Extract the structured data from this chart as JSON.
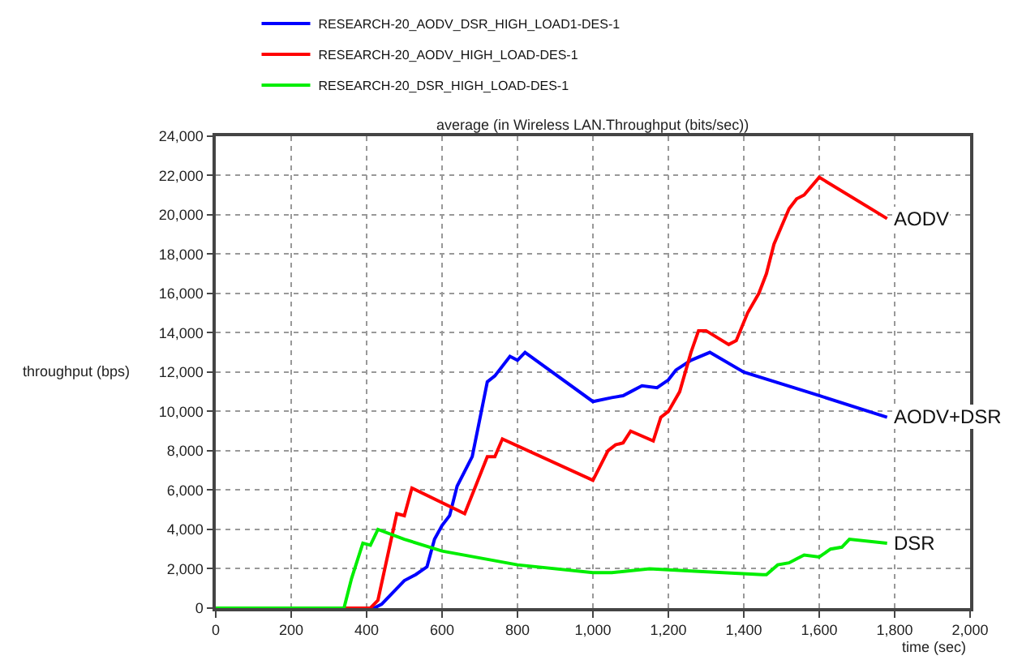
{
  "chart_data": {
    "type": "line",
    "title": "average (in Wireless LAN.Throughput (bits/sec))",
    "xlabel": "time (sec)",
    "ylabel": "throughput (bps)",
    "xlim": [
      0,
      2000
    ],
    "xticks": [
      {
        "value": 0,
        "label": "0"
      },
      {
        "value": 200,
        "label": "200"
      },
      {
        "value": 400,
        "label": "400"
      },
      {
        "value": 600,
        "label": "600"
      },
      {
        "value": 800,
        "label": "800"
      },
      {
        "value": 1000,
        "label": "1,000"
      },
      {
        "value": 1200,
        "label": "1,200"
      },
      {
        "value": 1400,
        "label": "1,400"
      },
      {
        "value": 1600,
        "label": "1,600"
      },
      {
        "value": 1800,
        "label": "1,800"
      },
      {
        "value": 2000,
        "label": "2,000"
      }
    ],
    "ylim": [
      0,
      24000
    ],
    "yticks": [
      {
        "value": 0,
        "label": "0"
      },
      {
        "value": 2000,
        "label": "2,000"
      },
      {
        "value": 4000,
        "label": "4,000"
      },
      {
        "value": 6000,
        "label": "6,000"
      },
      {
        "value": 8000,
        "label": "8,000"
      },
      {
        "value": 10000,
        "label": "10,000"
      },
      {
        "value": 12000,
        "label": "12,000"
      },
      {
        "value": 14000,
        "label": "14,000"
      },
      {
        "value": 16000,
        "label": "16,000"
      },
      {
        "value": 18000,
        "label": "18,000"
      },
      {
        "value": 20000,
        "label": "20,000"
      },
      {
        "value": 22000,
        "label": "22,000"
      },
      {
        "value": 24000,
        "label": "24,000"
      }
    ],
    "grid": true,
    "legend": "top left",
    "marker": "none",
    "line_style": "solid",
    "series": [
      {
        "name": "RESEARCH-20_AODV_DSR_HIGH_LOAD1-DES-1",
        "color": "#0000ff",
        "x": [
          0,
          420,
          440,
          500,
          530,
          560,
          580,
          600,
          620,
          640,
          680,
          720,
          740,
          780,
          800,
          820,
          1000,
          1050,
          1080,
          1100,
          1130,
          1170,
          1200,
          1220,
          1260,
          1310,
          1400,
          1600,
          1780
        ],
        "values": [
          0,
          0,
          200,
          1400,
          1700,
          2100,
          3500,
          4200,
          4700,
          6200,
          7700,
          11500,
          11800,
          12800,
          12600,
          13000,
          10500,
          10700,
          10800,
          11000,
          11300,
          11200,
          11600,
          12100,
          12600,
          13000,
          12000,
          10800,
          9700
        ]
      },
      {
        "name": "RESEARCH-20_AODV_HIGH_LOAD-DES-1",
        "color": "#ff0000",
        "x": [
          0,
          410,
          430,
          480,
          500,
          520,
          660,
          720,
          740,
          760,
          1000,
          1040,
          1060,
          1080,
          1100,
          1160,
          1180,
          1200,
          1230,
          1260,
          1280,
          1300,
          1360,
          1380,
          1410,
          1440,
          1460,
          1480,
          1500,
          1520,
          1540,
          1560,
          1600,
          1780
        ],
        "values": [
          0,
          0,
          400,
          4800,
          4700,
          6100,
          4800,
          7700,
          7700,
          8600,
          6500,
          8000,
          8300,
          8400,
          9000,
          8500,
          9700,
          10000,
          11000,
          13000,
          14100,
          14100,
          13400,
          13600,
          15000,
          16000,
          17000,
          18500,
          19400,
          20300,
          20800,
          21000,
          21900,
          19800
        ]
      },
      {
        "name": "RESEARCH-20_DSR_HIGH_LOAD-DES-1",
        "color": "#00ee00",
        "x": [
          0,
          340,
          360,
          390,
          410,
          430,
          500,
          600,
          800,
          1000,
          1050,
          1150,
          1250,
          1450,
          1460,
          1490,
          1520,
          1540,
          1560,
          1600,
          1630,
          1660,
          1680,
          1780
        ],
        "values": [
          0,
          0,
          1500,
          3300,
          3200,
          4000,
          3500,
          2900,
          2200,
          1800,
          1800,
          2000,
          1900,
          1700,
          1700,
          2200,
          2300,
          2500,
          2700,
          2600,
          3000,
          3100,
          3500,
          3300
        ]
      }
    ],
    "annotations": [
      "AODV+DSR",
      "AODV",
      "DSR"
    ]
  }
}
